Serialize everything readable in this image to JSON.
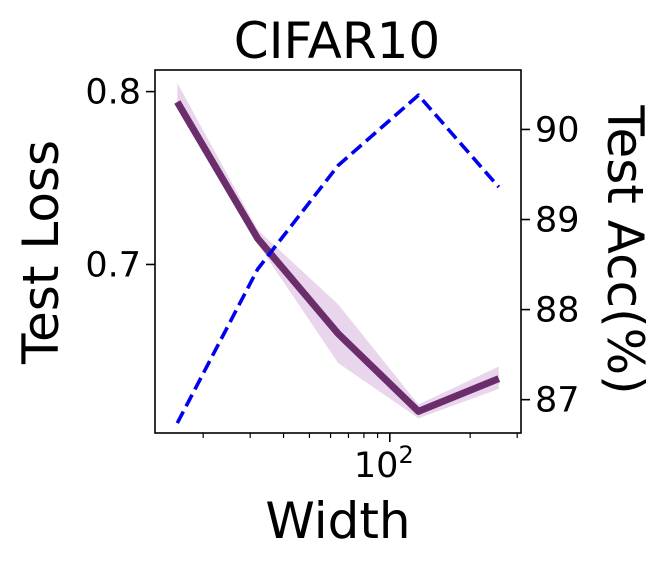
{
  "chart_data": {
    "type": "line",
    "title": "CIFAR10",
    "xlabel": "Width",
    "ylabel_left": "Test Loss",
    "ylabel_right": "Test Acc(%)",
    "x_scale": "log",
    "x_tick_labels": [
      {
        "value": 100,
        "base": "10",
        "exp": "2"
      }
    ],
    "y_left_ticks": [
      0.7,
      0.8
    ],
    "y_left_tick_labels": [
      "0.7",
      "0.8"
    ],
    "y_left_lim": [
      0.6025,
      0.8125
    ],
    "y_right_ticks": [
      87,
      88,
      89,
      90
    ],
    "y_right_tick_labels": [
      "87",
      "88",
      "89",
      "90"
    ],
    "y_right_lim": [
      86.63,
      90.66
    ],
    "x": [
      16,
      32,
      64,
      128,
      256
    ],
    "series": [
      {
        "axis": "left",
        "style": "solid",
        "color": "#6b2d6b",
        "band_color": "#e5cfe9",
        "values": [
          0.794,
          0.715,
          0.66,
          0.615,
          0.634
        ],
        "lower": [
          0.79,
          0.712,
          0.643,
          0.611,
          0.628
        ],
        "upper": [
          0.805,
          0.72,
          0.677,
          0.619,
          0.641
        ]
      },
      {
        "axis": "right",
        "style": "dashed",
        "color": "#0000ee",
        "values": [
          86.74,
          88.45,
          89.6,
          90.38,
          89.36
        ]
      }
    ],
    "grid": false
  }
}
